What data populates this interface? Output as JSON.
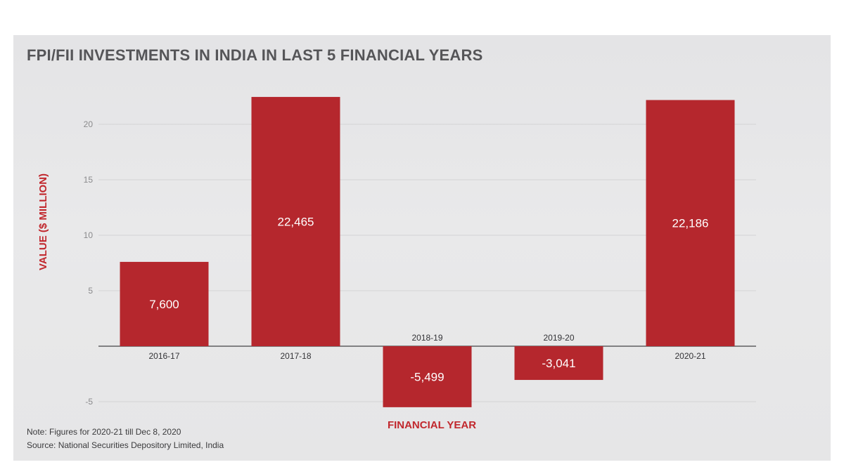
{
  "chart_data": {
    "type": "bar",
    "title": "FPI/FII INVESTMENTS IN INDIA IN LAST 5 FINANCIAL YEARS",
    "xlabel": "FINANCIAL YEAR",
    "ylabel": "VALUE ($ MILLION)",
    "categories": [
      "2016-17",
      "2017-18",
      "2018-19",
      "2019-20",
      "2020-21"
    ],
    "values": [
      7.6,
      22.465,
      -5.499,
      -3.041,
      22.186
    ],
    "data_labels": [
      "7,600",
      "22,465",
      "-5,499",
      "-3,041",
      "22,186"
    ],
    "yticks": [
      20,
      15,
      10,
      5,
      -5
    ],
    "ylim": [
      -5.5,
      23
    ],
    "grid": true,
    "bar_color": "#b5272d",
    "accent_color": "#c1272d"
  },
  "notes": {
    "note": "Note: Figures for 2020-21 till Dec 8, 2020",
    "source": "Source: National Securities Depository Limited, India"
  }
}
